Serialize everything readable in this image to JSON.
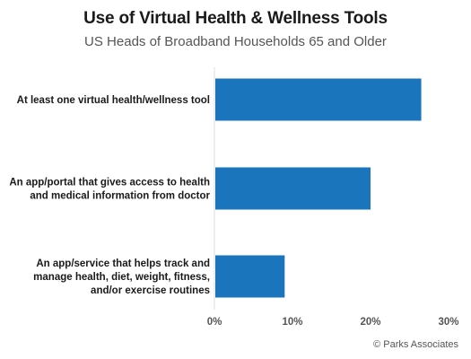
{
  "chart_data": {
    "type": "bar",
    "orientation": "horizontal",
    "title": "Use of Virtual Health & Wellness Tools",
    "subtitle": "US Heads of Broadband Households 65 and Older",
    "categories": [
      [
        "At least one virtual health/wellness tool"
      ],
      [
        "An app/portal that gives access to health",
        "and medical information from doctor"
      ],
      [
        "An app/service that helps track and",
        "manage health, diet, weight, fitness,",
        "and/or exercise routines"
      ]
    ],
    "values": [
      26.5,
      20,
      9
    ],
    "value_unit": "%",
    "xlim": [
      0,
      30
    ],
    "xticks": [
      "0%",
      "10%",
      "20%",
      "30%"
    ],
    "xtick_values": [
      0,
      10,
      20,
      30
    ],
    "bar_color": "#1a75bc",
    "grid": false
  },
  "footer": {
    "copyright": "© Parks Associates"
  }
}
